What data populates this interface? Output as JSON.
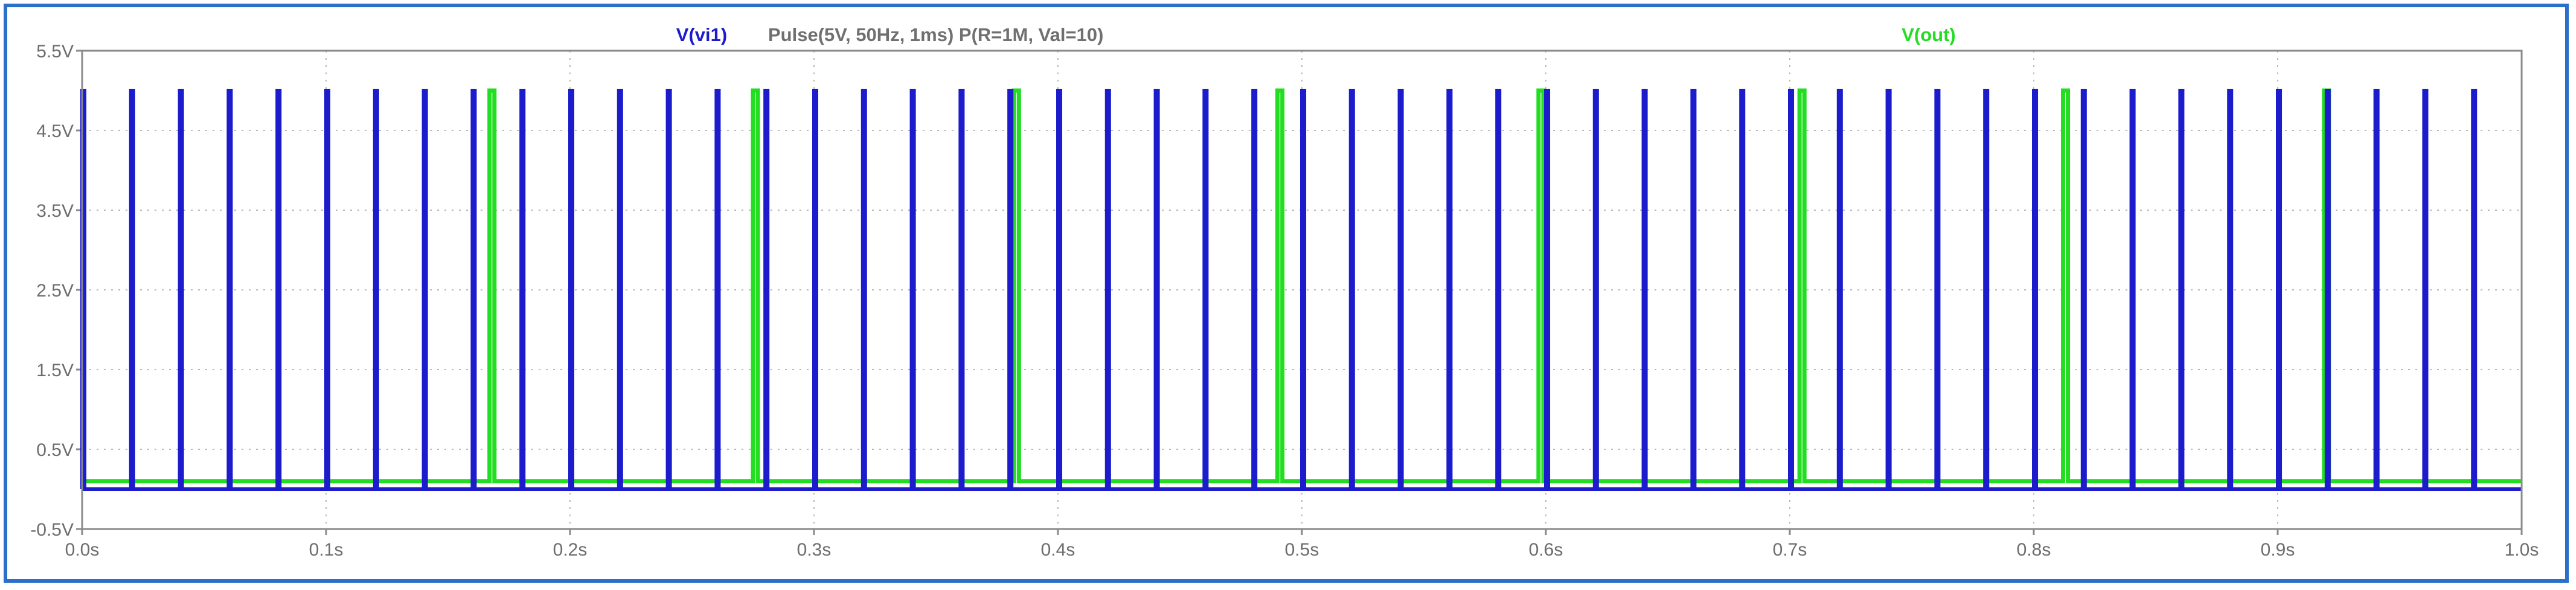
{
  "window": {
    "border_color": "#2a6fc9"
  },
  "chart_data": {
    "type": "line",
    "title": "",
    "caption": "Pulse(5V, 50Hz, 1ms) P(R=1M, Val=10)",
    "xlabel": "",
    "ylabel": "",
    "xlim": [
      0.0,
      1.0
    ],
    "ylim": [
      -0.5,
      5.5
    ],
    "grid": true,
    "xticks": [
      "0.0s",
      "0.1s",
      "0.2s",
      "0.3s",
      "0.4s",
      "0.5s",
      "0.6s",
      "0.7s",
      "0.8s",
      "0.9s",
      "1.0s"
    ],
    "xtick_values": [
      0.0,
      0.1,
      0.2,
      0.3,
      0.4,
      0.5,
      0.6,
      0.7,
      0.8,
      0.9,
      1.0
    ],
    "yticks": [
      "5.5V",
      "4.5V",
      "3.5V",
      "2.5V",
      "1.5V",
      "0.5V",
      "-0.5V"
    ],
    "ytick_values": [
      5.5,
      4.5,
      3.5,
      2.5,
      1.5,
      0.5,
      -0.5
    ],
    "legend_placement": "top",
    "series": [
      {
        "name": "V(vi1)",
        "color": "#1c1ccc",
        "baseline": 0.0,
        "high": 5.0,
        "pulse_width": 0.001,
        "pulse_starts": [
          0.0,
          0.02,
          0.04,
          0.06,
          0.08,
          0.1,
          0.12,
          0.14,
          0.16,
          0.18,
          0.2,
          0.22,
          0.24,
          0.26,
          0.28,
          0.3,
          0.32,
          0.34,
          0.36,
          0.38,
          0.4,
          0.42,
          0.44,
          0.46,
          0.48,
          0.5,
          0.52,
          0.54,
          0.56,
          0.58,
          0.6,
          0.62,
          0.64,
          0.66,
          0.68,
          0.7,
          0.72,
          0.74,
          0.76,
          0.78,
          0.8,
          0.82,
          0.84,
          0.86,
          0.88,
          0.9,
          0.92,
          0.94,
          0.96,
          0.98
        ]
      },
      {
        "name": "V(out)",
        "color": "#22dd22",
        "baseline": 0.1,
        "high": 5.0,
        "pulse_width": 0.002,
        "pulse_starts": [
          0.167,
          0.275,
          0.382,
          0.49,
          0.597,
          0.704,
          0.812,
          0.919
        ]
      }
    ]
  }
}
